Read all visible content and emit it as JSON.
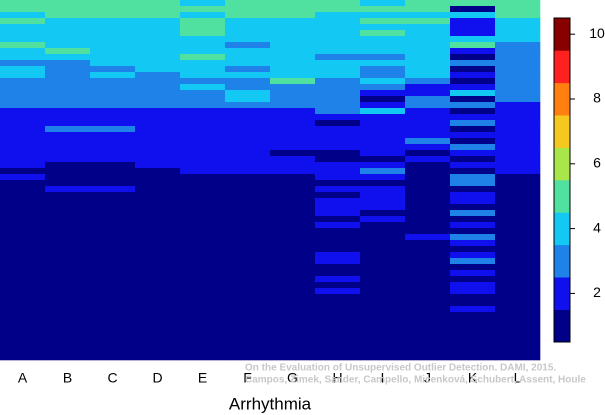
{
  "chart_data": {
    "type": "heatmap",
    "x_label": "Arrhythmia",
    "categories": [
      "A",
      "B",
      "C",
      "D",
      "E",
      "F",
      "G",
      "H",
      "I",
      "J",
      "K",
      "L"
    ],
    "values": [
      [
        5,
        5,
        4,
        5,
        4,
        4,
        4,
        5,
        4,
        4,
        3,
        4,
        4,
        3,
        3,
        3,
        3,
        3,
        2,
        2,
        2,
        2,
        2,
        2,
        2,
        2,
        2,
        2,
        1,
        2,
        1,
        1,
        1,
        1,
        1,
        1,
        1,
        1,
        1,
        1,
        1,
        1,
        1,
        1,
        1,
        1,
        1,
        1,
        1,
        1,
        1,
        1,
        1,
        1,
        1,
        1,
        1,
        1,
        1,
        1
      ],
      [
        5,
        5,
        5,
        4,
        4,
        4,
        4,
        4,
        5,
        4,
        3,
        3,
        3,
        3,
        3,
        3,
        3,
        3,
        2,
        2,
        2,
        3,
        2,
        2,
        2,
        2,
        2,
        1,
        1,
        1,
        1,
        2,
        1,
        1,
        1,
        1,
        1,
        1,
        1,
        1,
        1,
        1,
        1,
        1,
        1,
        1,
        1,
        1,
        1,
        1,
        1,
        1,
        1,
        1,
        1,
        1,
        1,
        1,
        1,
        1
      ],
      [
        5,
        5,
        5,
        4,
        4,
        4,
        4,
        4,
        4,
        4,
        4,
        3,
        4,
        3,
        3,
        3,
        3,
        3,
        2,
        2,
        2,
        3,
        2,
        2,
        2,
        2,
        2,
        1,
        1,
        1,
        1,
        2,
        1,
        1,
        1,
        1,
        1,
        1,
        1,
        1,
        1,
        1,
        1,
        1,
        1,
        1,
        1,
        1,
        1,
        1,
        1,
        1,
        1,
        1,
        1,
        1,
        1,
        1,
        1,
        1
      ],
      [
        5,
        5,
        5,
        4,
        4,
        4,
        4,
        4,
        4,
        4,
        4,
        4,
        3,
        3,
        3,
        3,
        3,
        3,
        2,
        2,
        2,
        2,
        2,
        2,
        2,
        2,
        2,
        2,
        1,
        1,
        1,
        1,
        1,
        1,
        1,
        1,
        1,
        1,
        1,
        1,
        1,
        1,
        1,
        1,
        1,
        1,
        1,
        1,
        1,
        1,
        1,
        1,
        1,
        1,
        1,
        1,
        1,
        1,
        1,
        1
      ],
      [
        4,
        5,
        4,
        5,
        5,
        5,
        4,
        4,
        4,
        5,
        4,
        4,
        4,
        3,
        4,
        3,
        3,
        3,
        2,
        2,
        2,
        2,
        2,
        2,
        2,
        2,
        2,
        2,
        2,
        1,
        1,
        1,
        1,
        1,
        1,
        1,
        1,
        1,
        1,
        1,
        1,
        1,
        1,
        1,
        1,
        1,
        1,
        1,
        1,
        1,
        1,
        1,
        1,
        1,
        1,
        1,
        1,
        1,
        1,
        1
      ],
      [
        5,
        5,
        5,
        4,
        4,
        4,
        4,
        3,
        4,
        4,
        4,
        3,
        4,
        3,
        3,
        4,
        4,
        3,
        2,
        2,
        2,
        2,
        2,
        2,
        2,
        2,
        2,
        2,
        2,
        1,
        1,
        1,
        1,
        1,
        1,
        1,
        1,
        1,
        1,
        1,
        1,
        1,
        1,
        1,
        1,
        1,
        1,
        1,
        1,
        1,
        1,
        1,
        1,
        1,
        1,
        1,
        1,
        1,
        1,
        1
      ],
      [
        5,
        5,
        5,
        4,
        4,
        4,
        4,
        4,
        4,
        4,
        4,
        4,
        4,
        5,
        3,
        3,
        3,
        3,
        2,
        2,
        2,
        2,
        2,
        2,
        2,
        1,
        2,
        2,
        2,
        1,
        1,
        1,
        1,
        1,
        1,
        1,
        1,
        1,
        1,
        1,
        1,
        1,
        1,
        1,
        1,
        1,
        1,
        1,
        1,
        1,
        1,
        1,
        1,
        1,
        1,
        1,
        1,
        1,
        1,
        1
      ],
      [
        5,
        5,
        4,
        4,
        4,
        4,
        4,
        4,
        4,
        3,
        4,
        4,
        4,
        3,
        3,
        3,
        3,
        3,
        3,
        2,
        1,
        2,
        2,
        2,
        2,
        1,
        1,
        2,
        2,
        2,
        1,
        2,
        1,
        2,
        2,
        2,
        1,
        2,
        1,
        1,
        1,
        1,
        2,
        2,
        1,
        1,
        2,
        1,
        2,
        1,
        1,
        1,
        1,
        1,
        1,
        1,
        1,
        1,
        1,
        1
      ],
      [
        4,
        5,
        4,
        5,
        4,
        5,
        4,
        4,
        4,
        3,
        4,
        3,
        3,
        4,
        3,
        2,
        1,
        2,
        4,
        2,
        2,
        2,
        2,
        2,
        2,
        2,
        1,
        2,
        3,
        2,
        1,
        2,
        2,
        2,
        2,
        1,
        2,
        1,
        1,
        1,
        1,
        1,
        1,
        1,
        1,
        1,
        1,
        1,
        1,
        1,
        1,
        1,
        1,
        1,
        1,
        1,
        1,
        1,
        1,
        1
      ],
      [
        5,
        5,
        4,
        5,
        4,
        4,
        4,
        4,
        4,
        4,
        4,
        4,
        4,
        3,
        2,
        2,
        3,
        3,
        2,
        2,
        2,
        2,
        2,
        3,
        2,
        1,
        2,
        1,
        1,
        1,
        1,
        1,
        1,
        1,
        1,
        1,
        1,
        1,
        1,
        2,
        1,
        1,
        1,
        1,
        1,
        1,
        1,
        1,
        1,
        1,
        1,
        1,
        1,
        1,
        1,
        1,
        1,
        1,
        1,
        1
      ],
      [
        5,
        1,
        4,
        2,
        2,
        2,
        4,
        5,
        2,
        1,
        3,
        1,
        2,
        1,
        2,
        4,
        1,
        3,
        1,
        2,
        3,
        1,
        2,
        1,
        3,
        2,
        1,
        2,
        1,
        3,
        3,
        1,
        2,
        2,
        1,
        3,
        1,
        2,
        1,
        3,
        2,
        1,
        2,
        3,
        1,
        2,
        1,
        2,
        2,
        1,
        1,
        2,
        1,
        1,
        1,
        1,
        1,
        1,
        1,
        1
      ],
      [
        5,
        5,
        5,
        4,
        4,
        4,
        4,
        3,
        3,
        3,
        3,
        3,
        3,
        3,
        3,
        3,
        3,
        2,
        2,
        2,
        2,
        2,
        2,
        2,
        2,
        2,
        2,
        2,
        2,
        1,
        1,
        1,
        1,
        1,
        1,
        1,
        1,
        1,
        1,
        1,
        1,
        1,
        1,
        1,
        1,
        1,
        1,
        1,
        1,
        1,
        1,
        1,
        1,
        1,
        1,
        1,
        1,
        1,
        1,
        1
      ]
    ],
    "levels": [
      1,
      2,
      3,
      4,
      5,
      6,
      7,
      8,
      9,
      10
    ],
    "colors": [
      "#000088",
      "#1010ee",
      "#1e82e8",
      "#14c8f4",
      "#50e0a0",
      "#a8e64a",
      "#f4c81e",
      "#ff7f10",
      "#ff2020",
      "#880000"
    ],
    "clim": [
      0.5,
      10.5
    ],
    "colorbar_ticks": [
      2,
      4,
      6,
      8,
      10
    ],
    "annotations": [
      "On the Evaluation of Unsupervised Outlier Detection. DAMI, 2015.",
      "Campos, Zimek, Sander, Campello, Micenková, Schubert, Assent, Houle"
    ]
  }
}
